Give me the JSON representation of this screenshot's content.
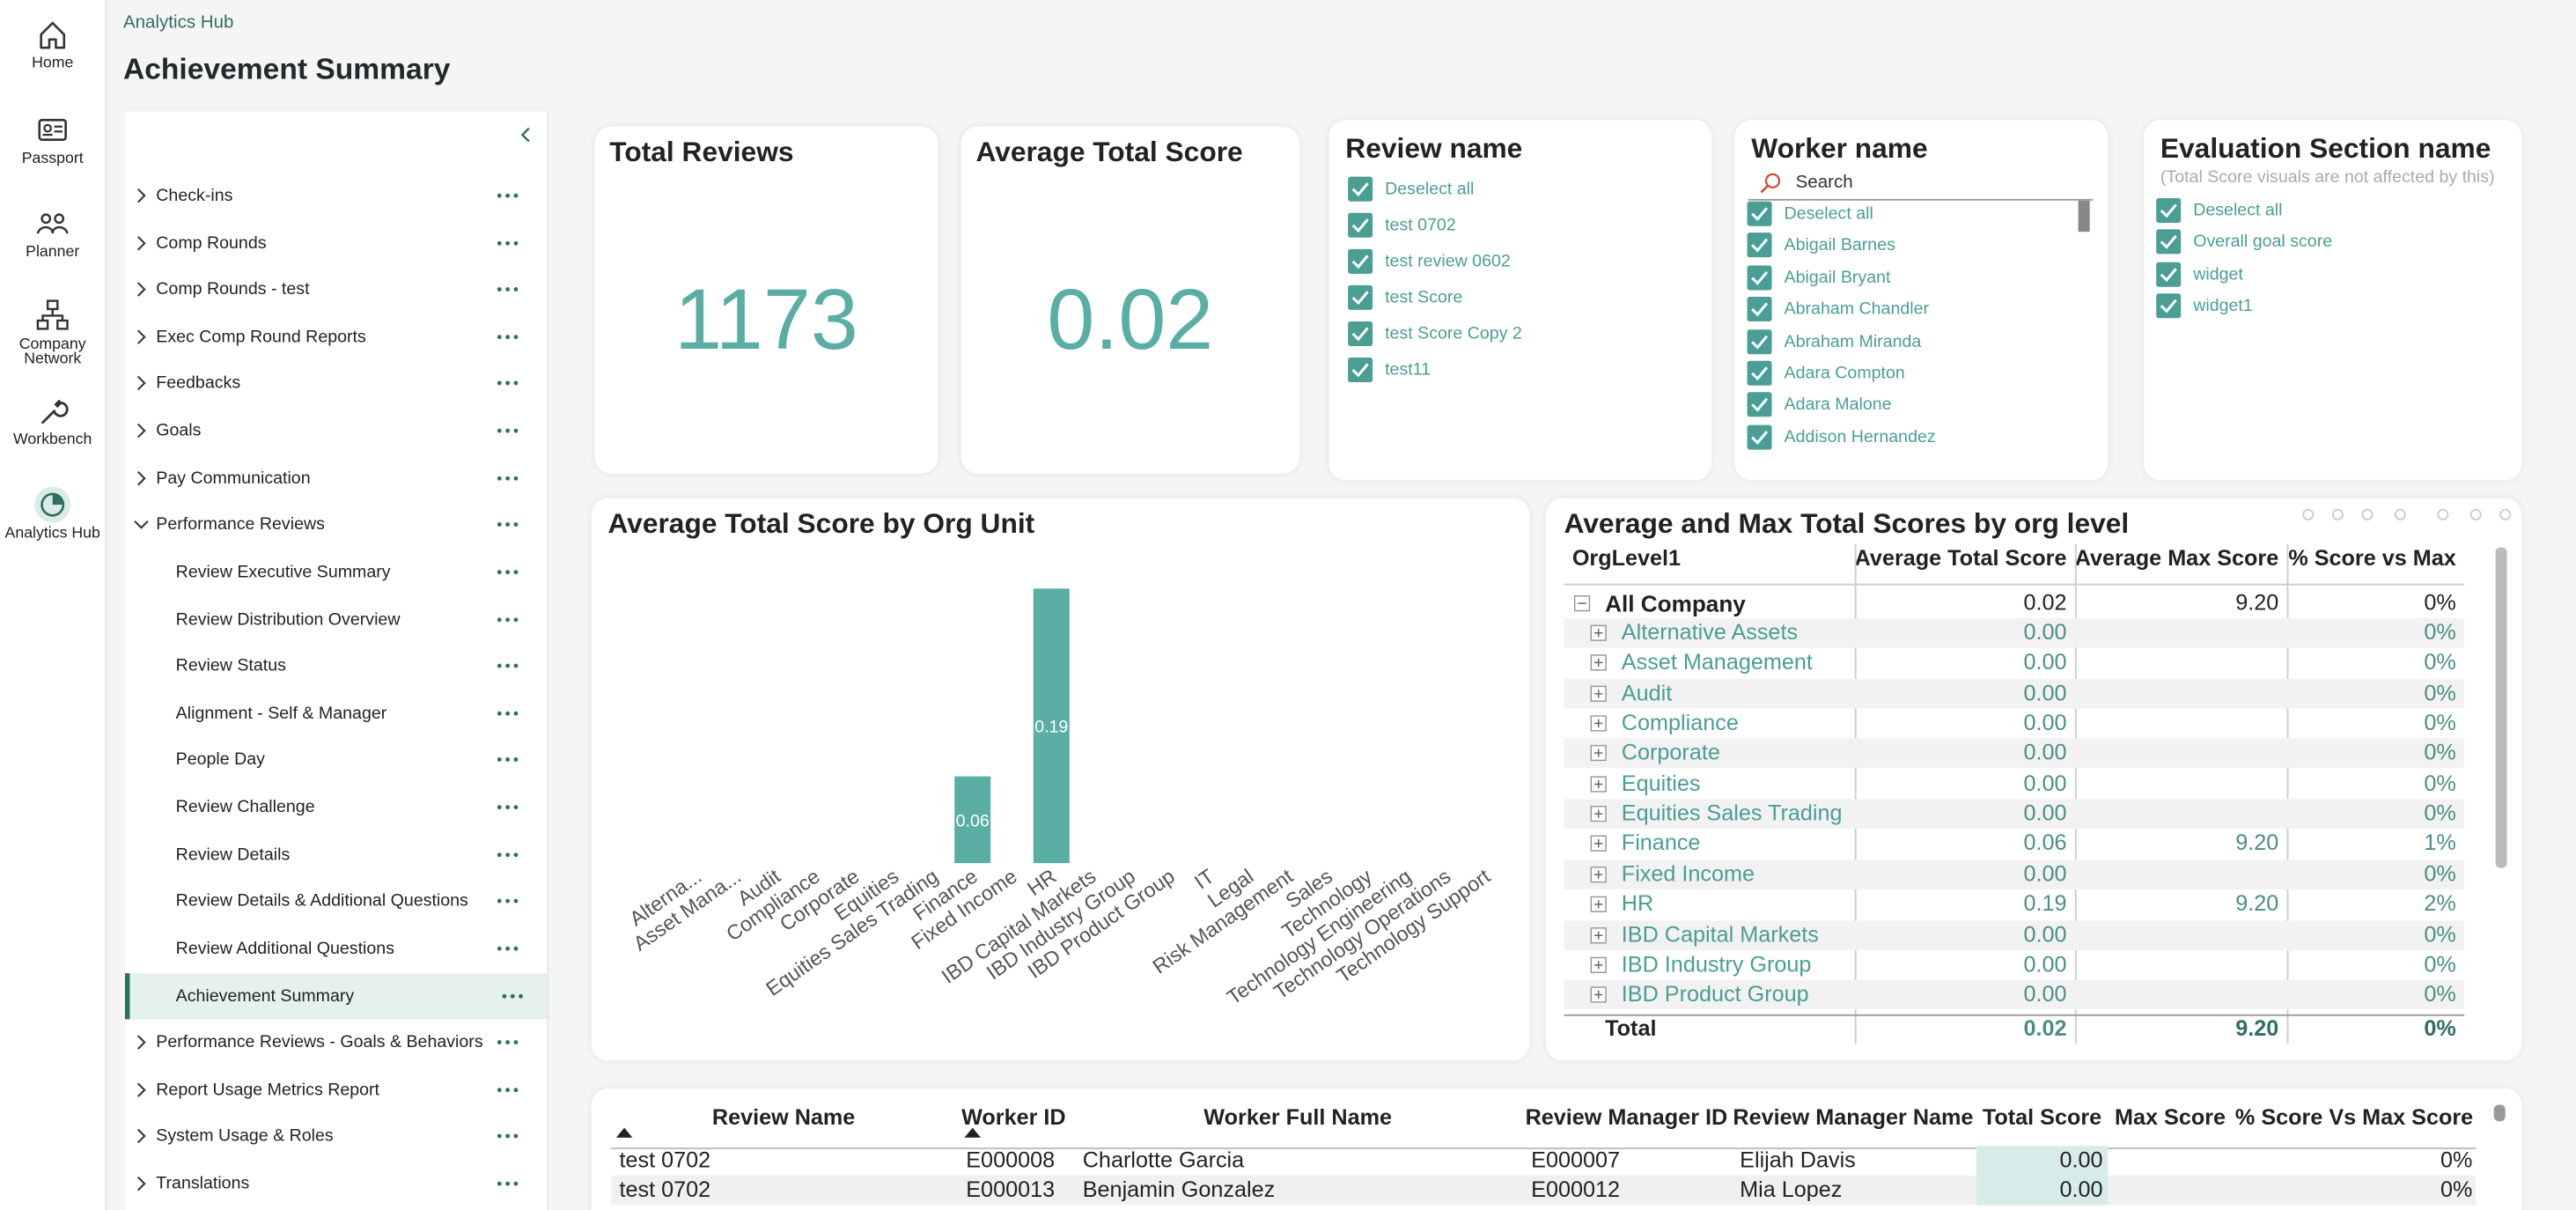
{
  "nav": [
    {
      "label": "Home"
    },
    {
      "label": "Passport"
    },
    {
      "label": "Planner"
    },
    {
      "label": "Company Network"
    },
    {
      "label": "Workbench"
    },
    {
      "label": "Analytics Hub"
    }
  ],
  "breadcrumb": "Analytics Hub",
  "page_title": "Achievement Summary",
  "sidebar": {
    "items": [
      {
        "label": "Check-ins"
      },
      {
        "label": "Comp Rounds"
      },
      {
        "label": "Comp Rounds - test"
      },
      {
        "label": "Exec Comp Round Reports"
      },
      {
        "label": "Feedbacks"
      },
      {
        "label": "Goals"
      },
      {
        "label": "Pay Communication"
      },
      {
        "label": "Performance Reviews",
        "children": [
          {
            "label": "Review Executive Summary"
          },
          {
            "label": "Review Distribution Overview"
          },
          {
            "label": "Review Status"
          },
          {
            "label": "Alignment - Self & Manager"
          },
          {
            "label": "People Day"
          },
          {
            "label": "Review Challenge"
          },
          {
            "label": "Review Details"
          },
          {
            "label": "Review Details & Additional Questions"
          },
          {
            "label": "Review Additional Questions"
          },
          {
            "label": "Achievement Summary"
          }
        ]
      },
      {
        "label": "Performance Reviews - Goals & Behaviors"
      },
      {
        "label": "Report Usage Metrics Report"
      },
      {
        "label": "System Usage & Roles"
      },
      {
        "label": "Translations"
      }
    ]
  },
  "cards": [
    {
      "title": "Total Reviews",
      "value": 1173
    },
    {
      "title": "Average Total Score",
      "value": 0.02
    }
  ],
  "slicers": [
    {
      "title": "Review name",
      "items": [
        "Deselect all",
        "test 0702",
        "test review 0602",
        "test Score",
        "test Score Copy 2",
        "test11"
      ]
    },
    {
      "title": "Worker name",
      "search": "Search",
      "items": [
        "Deselect all",
        "Abigail Barnes",
        "Abigail Bryant",
        "Abraham Chandler",
        "Abraham Miranda",
        "Adara Compton",
        "Adara Malone",
        "Addison Hernandez"
      ]
    },
    {
      "title": "Evaluation Section name",
      "subtitle": "(Total Score visuals are not affected by this)",
      "items": [
        "Deselect all",
        "Overall goal score",
        "widget",
        "widget1"
      ]
    }
  ],
  "chart_data": {
    "type": "bar",
    "title": "Average Total Score by Org Unit",
    "categories": [
      "Alterna...",
      "Asset Mana...",
      "Audit",
      "Compliance",
      "Corporate",
      "Equities",
      "Equities Sales Trading",
      "Finance",
      "Fixed Income",
      "HR",
      "IBD Capital Markets",
      "IBD Industry Group",
      "IBD Product Group",
      "IT",
      "Legal",
      "Risk Management",
      "Sales",
      "Technology",
      "Technology Engineering",
      "Technology Operations",
      "Technology Support"
    ],
    "values": [
      0,
      0,
      0,
      0,
      0,
      0,
      0,
      0.06,
      0,
      0.19,
      0,
      0,
      0,
      0,
      0,
      0,
      0,
      0,
      0,
      0,
      0
    ],
    "color": "#5aaea4"
  },
  "matrix": {
    "title": "Average and Max Total Scores by org level",
    "columns": [
      "OrgLevel1",
      "Average Total Score",
      "Average Max Score",
      "% Score vs Max"
    ],
    "rows": [
      [
        "All Company",
        "0.02",
        "9.20",
        "0%"
      ],
      [
        "Alternative Assets",
        "0.00",
        null,
        "0%"
      ],
      [
        "Asset Management",
        "0.00",
        null,
        "0%"
      ],
      [
        "Audit",
        "0.00",
        null,
        "0%"
      ],
      [
        "Compliance",
        "0.00",
        null,
        "0%"
      ],
      [
        "Corporate",
        "0.00",
        null,
        "0%"
      ],
      [
        "Equities",
        "0.00",
        null,
        "0%"
      ],
      [
        "Equities Sales Trading",
        "0.00",
        null,
        "0%"
      ],
      [
        "Finance",
        "0.06",
        "9.20",
        "1%"
      ],
      [
        "Fixed Income",
        "0.00",
        null,
        "0%"
      ],
      [
        "HR",
        "0.19",
        "9.20",
        "2%"
      ],
      [
        "IBD Capital Markets",
        "0.00",
        null,
        "0%"
      ],
      [
        "IBD Industry Group",
        "0.00",
        null,
        "0%"
      ],
      [
        "IBD Product Group",
        "0.00",
        null,
        "0%"
      ]
    ],
    "total": [
      "Total",
      "0.02",
      "9.20",
      "0%"
    ]
  },
  "table": {
    "columns": [
      "Review Name",
      "Worker ID",
      "Worker Full Name",
      "Review Manager ID",
      "Review Manager Name",
      "Total Score",
      "Max Score",
      "% Score Vs Max Score"
    ],
    "rows": [
      [
        "test 0702",
        "E000008",
        "Charlotte Garcia",
        "E000007",
        "Elijah Davis",
        "0.00",
        null,
        "0%"
      ],
      [
        "test 0702",
        "E000013",
        "Benjamin Gonzalez",
        "E000012",
        "Mia Lopez",
        "0.00",
        null,
        "0%"
      ]
    ]
  }
}
